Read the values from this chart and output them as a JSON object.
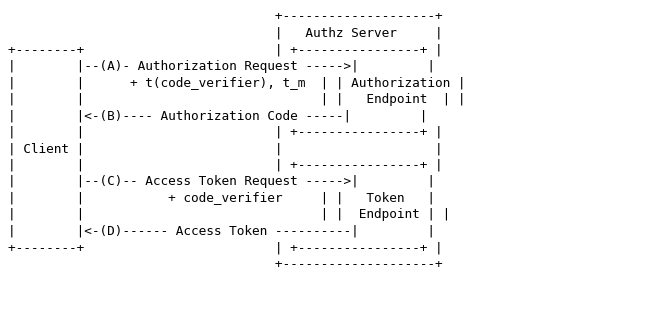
{
  "background_color": "#ffffff",
  "text_color": "#000000",
  "font_size": 9.2,
  "ascii_art": [
    "                                   +--------------------+",
    "                                   |   Authz Server     |",
    "+--------+                         | +----------------+ |",
    "|        |--(A)- Authorization Request ----->|         |",
    "|        |      + t(code_verifier), t_m  | | Authorization |",
    "|        |                               | |   Endpoint  | |",
    "|        |<-(B)---- Authorization Code -----|         |",
    "|        |                         | +----------------+ |",
    "| Client |                         |                    |",
    "|        |                         | +----------------+ |",
    "|        |--(C)-- Access Token Request ----->|         |",
    "|        |           + code_verifier     | |   Token   |",
    "|        |                               | |  Endpoint | |",
    "|        |<-(D)------ Access Token ----------|         |",
    "+--------+                         | +----------------+ |",
    "                                   +--------------------+"
  ]
}
